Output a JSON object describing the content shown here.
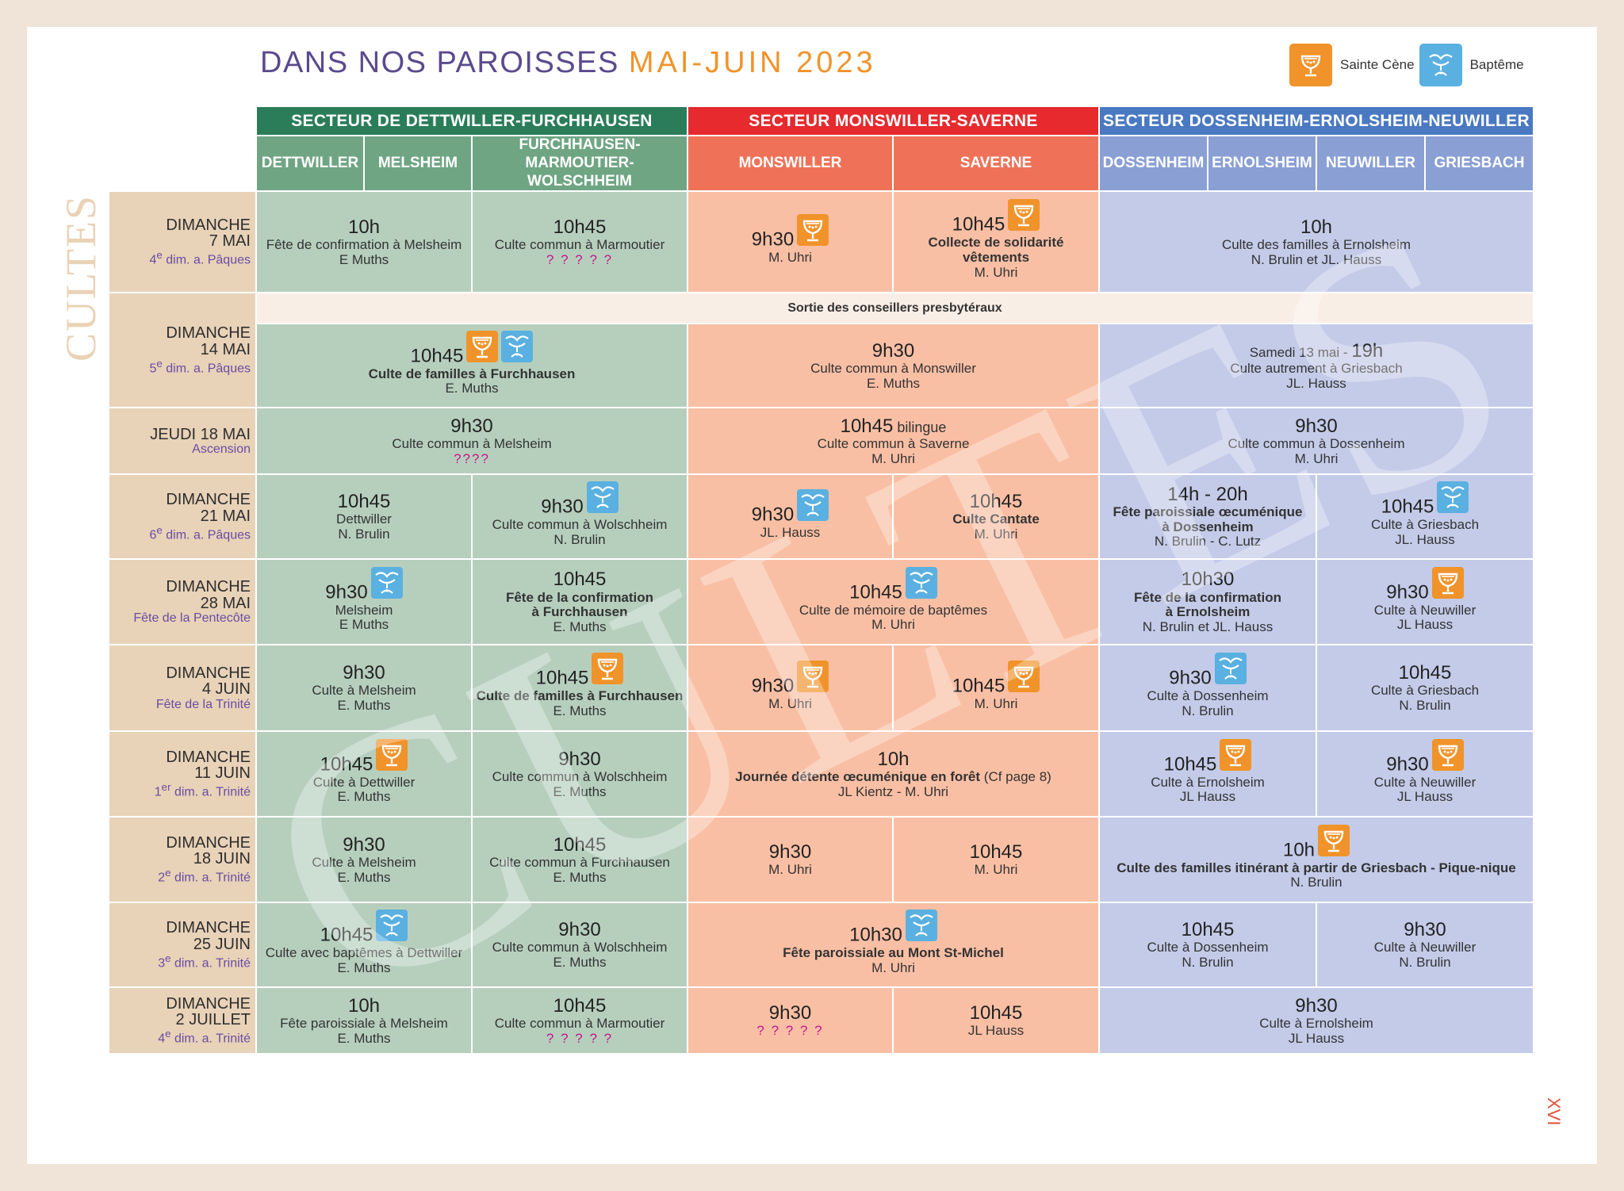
{
  "title": {
    "part1": "DANS NOS PAROISSES",
    "part2": "MAI-JUIN 2023"
  },
  "legend": {
    "cene": "Sainte Cène",
    "bapteme": "Baptême"
  },
  "side_label": "CULTES",
  "watermark": "CULTES",
  "page_number": "XVI",
  "sectors": [
    "SECTEUR DE DETTWILLER-FURCHHAUSEN",
    "SECTEUR MONSWILLER-SAVERNE",
    "SECTEUR DOSSENHEIM-ERNOLSHEIM-NEUWILLER"
  ],
  "parishes": {
    "dettwiller": "DETTWILLER",
    "melsheim": "MELSHEIM",
    "furch1": "FURCHHAUSEN-MARMOUTIER-",
    "furch2": "WOLSCHHEIM",
    "monswiller": "MONSWILLER",
    "saverne": "SAVERNE",
    "dossenheim": "DOSSENHEIM",
    "ernolsheim": "ERNOLSHEIM",
    "neuwiller": "NEUWILLER",
    "griesbach": "GRIESBACH"
  },
  "band_note": "Sortie des conseillers presbytéraux",
  "rows": {
    "r1": {
      "day": "DIMANCHE",
      "date": "7 MAI",
      "sub": "4e dim. a. Pâques",
      "sup": "e",
      "sub_rest": " dim. a. Pâques",
      "num": "4",
      "dm_time": "10h",
      "dm_l1": "Fête de confirmation à Melsheim",
      "dm_l2": "E Muths",
      "f_time": "10h45",
      "f_l1": "Culte commun à Marmoutier",
      "f_l2": "? ? ? ? ?",
      "mo_time": "9h30",
      "mo_l1": "M. Uhri",
      "sa_time": "10h45",
      "sa_l1": "Collecte de solidarité",
      "sa_l2": "vêtements",
      "sa_l3": "M. Uhri",
      "b_time": "10h",
      "b_l1": "Culte des familles à Ernolsheim",
      "b_l2": "N. Brulin et JL. Hauss"
    },
    "r2": {
      "day": "DIMANCHE",
      "date": "14 MAI",
      "num": "5",
      "sup": "e",
      "sub_rest": " dim. a. Pâques",
      "g_time": "10h45",
      "g_l1": "Culte de familles à Furchhausen",
      "g_l2": "E. Muths",
      "r_time": "9h30",
      "r_l1": "Culte commun à Monswiller",
      "r_l2": "E. Muths",
      "b_pre": "Samedi 13 mai - ",
      "b_time": "19h",
      "b_l1": "Culte autrement à Griesbach",
      "b_l2": "JL. Hauss"
    },
    "r3": {
      "day": "JEUDI 18 MAI",
      "sub": "Ascension",
      "g_time": "9h30",
      "g_l1": "Culte commun à Melsheim",
      "g_l2": "????",
      "r_time": "10h45",
      "r_extra": " bilingue",
      "r_l1": "Culte commun à Saverne",
      "r_l2": "M. Uhri",
      "b_time": "9h30",
      "b_l1": "Culte commun à Dossenheim",
      "b_l2": "M. Uhri"
    },
    "r4": {
      "day": "DIMANCHE",
      "date": "21 MAI",
      "num": "6",
      "sup": "e",
      "sub_rest": " dim. a. Pâques",
      "dm_time": "10h45",
      "dm_l1": "Dettwiller",
      "dm_l2": "N. Brulin",
      "f_time": "9h30",
      "f_l1": "Culte commun à Wolschheim",
      "f_l2": "N. Brulin",
      "mo_time": "9h30",
      "mo_l1": "JL. Hauss",
      "sa_time": "10h45",
      "sa_l1": "Culte Cantate",
      "sa_l2": "M. Uhri",
      "de_time": "14h - 20h",
      "de_l1": "Fête paroissiale œcuménique",
      "de_l2": "à Dossenheim",
      "de_l3": "N. Brulin - C. Lutz",
      "ng_time": "10h45",
      "ng_l1": "Culte à Griesbach",
      "ng_l2": "JL. Hauss"
    },
    "r5": {
      "day": "DIMANCHE",
      "date": "28 MAI",
      "sub": "Fête de la Pentecôte",
      "dm_time": "9h30",
      "dm_l1": "Melsheim",
      "dm_l2": "E Muths",
      "f_time": "10h45",
      "f_l1": "Fête de la confirmation",
      "f_l2": "à Furchhausen",
      "f_l3": "E. Muths",
      "r_time": "10h45",
      "r_l1": "Culte de mémoire de baptêmes",
      "r_l2": "M. Uhri",
      "de_time": "10h30",
      "de_l1": "Fête de la confirmation",
      "de_l2": "à Ernolsheim",
      "de_l3": "N. Brulin et JL. Hauss",
      "ng_time": "9h30",
      "ng_l1": "Culte à Neuwiller",
      "ng_l2": "JL Hauss"
    },
    "r6": {
      "day": "DIMANCHE",
      "date": "4 JUIN",
      "sub": "Fête de la Trinité",
      "dm_time": "9h30",
      "dm_l1": "Culte à Melsheim",
      "dm_l2": "E. Muths",
      "f_time": "10h45",
      "f_l1": "Culte de familles à Furchhausen",
      "f_l2": "E. Muths",
      "mo_time": "9h30",
      "mo_l1": "M. Uhri",
      "sa_time": "10h45",
      "sa_l1": "M. Uhri",
      "de_time": "9h30",
      "de_l1": "Culte à Dossenheim",
      "de_l2": "N. Brulin",
      "ng_time": "10h45",
      "ng_l1": "Culte à Griesbach",
      "ng_l2": "N. Brulin"
    },
    "r7": {
      "day": "DIMANCHE",
      "date": "11 JUIN",
      "num": "1",
      "sup": "er",
      "sub_rest": " dim. a. Trinité",
      "dm_time": "10h45",
      "dm_l1": "Culte à Dettwiller",
      "dm_l2": "E. Muths",
      "f_time": "9h30",
      "f_l1": "Culte commun à Wolschheim",
      "f_l2": "E. Muths",
      "r_time": "10h",
      "r_l1": "Journée détente œcuménique en forêt",
      "r_extra": " (Cf page 8)",
      "r_l2": "JL Kientz - M. Uhri",
      "de_time": "10h45",
      "de_l1": "Culte à Ernolsheim",
      "de_l2": "JL Hauss",
      "ng_time": "9h30",
      "ng_l1": "Culte à Neuwiller",
      "ng_l2": "JL Hauss"
    },
    "r8": {
      "day": "DIMANCHE",
      "date": "18 JUIN",
      "num": "2",
      "sup": "e",
      "sub_rest": " dim. a. Trinité",
      "dm_time": "9h30",
      "dm_l1": "Culte à Melsheim",
      "dm_l2": "E. Muths",
      "f_time": "10h45",
      "f_l1": "Culte commun à Furchhausen",
      "f_l2": "E. Muths",
      "mo_time": "9h30",
      "mo_l1": "M. Uhri",
      "sa_time": "10h45",
      "sa_l1": "M. Uhri",
      "b_time": "10h",
      "b_l1": "Culte des familles itinérant à partir de Griesbach - Pique-nique",
      "b_l2": "N. Brulin"
    },
    "r9": {
      "day": "DIMANCHE",
      "date": "25 JUIN",
      "num": "3",
      "sup": "e",
      "sub_rest": " dim. a. Trinité",
      "dm_time": "10h45",
      "dm_l1": "Culte avec baptêmes à Dettwiller",
      "dm_l2": "E. Muths",
      "f_time": "9h30",
      "f_l1": "Culte commun à Wolschheim",
      "f_l2": "E. Muths",
      "r_time": "10h30",
      "r_l1": "Fête paroissiale au Mont St-Michel",
      "r_l2": "M. Uhri",
      "de_time": "10h45",
      "de_l1": "Culte à Dossenheim",
      "de_l2": "N. Brulin",
      "ng_time": "9h30",
      "ng_l1": "Culte à Neuwiller",
      "ng_l2": "N. Brulin"
    },
    "r10": {
      "day": "DIMANCHE",
      "date": "2 JUILLET",
      "num": "4",
      "sup": "e",
      "sub_rest": " dim. a. Trinité",
      "dm_time": "10h",
      "dm_l1": "Fête paroissiale à Melsheim",
      "dm_l2": "E. Muths",
      "f_time": "10h45",
      "f_l1": "Culte commun à Marmoutier",
      "f_l2": "? ? ? ? ?",
      "mo_time": "9h30",
      "mo_l1": "? ? ? ? ?",
      "sa_time": "10h45",
      "sa_l1": "JL Hauss",
      "b_time": "9h30",
      "b_l1": "Culte à Ernolsheim",
      "b_l2": "JL Hauss"
    }
  },
  "colors": {
    "sector_green": "#2a7d58",
    "sector_red": "#e62a2e",
    "sector_blue": "#4a79c2",
    "cell_green": "#b6cfbd",
    "cell_red": "#f9bfa4",
    "cell_blue": "#c3cbe8",
    "date_col": "#e8d2b8",
    "cene_icon": "#f0932a",
    "bapteme_icon": "#5ab0e0"
  },
  "icons": {
    "cene": "chalice-icon",
    "bapteme": "baptism-hands-icon"
  }
}
